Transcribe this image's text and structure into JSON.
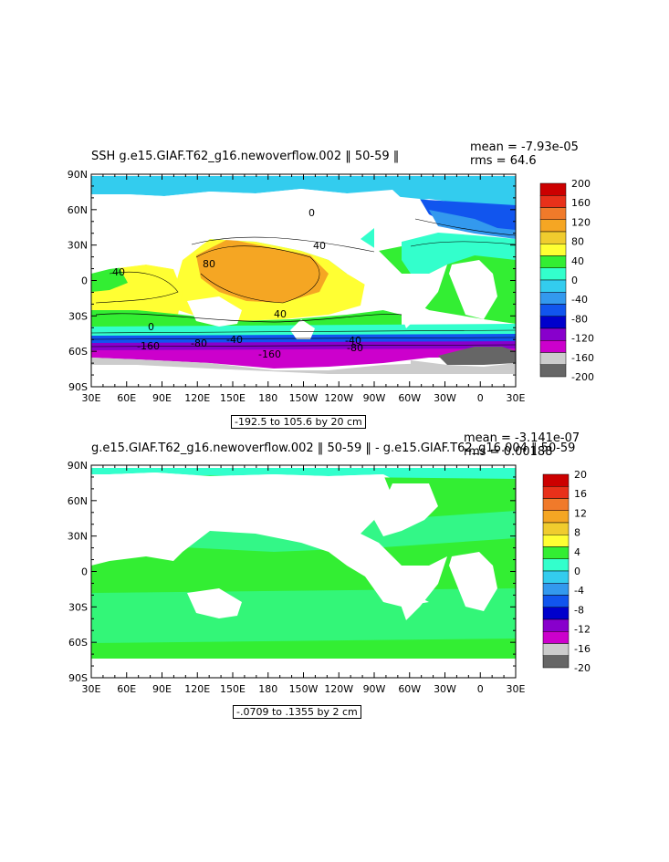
{
  "panels": [
    {
      "title": "SSH g.e15.GIAF.T62_g16.newoverflow.002 ‖ 50-59 ‖",
      "stats": {
        "mean": "mean = -7.93e-05",
        "rms": "rms = 64.6"
      },
      "range_label": "-192.5 to 105.6 by 20 cm",
      "colorbar": {
        "labels": [
          "200",
          "160",
          "120",
          "80",
          "40",
          "0",
          "-40",
          "-80",
          "-120",
          "-160",
          "-200"
        ],
        "colors": [
          "#cc0000",
          "#e8311a",
          "#f07a2a",
          "#f5a623",
          "#f0cc2e",
          "#ffff33",
          "#33ee33",
          "#33ffcc",
          "#33ccee",
          "#3399ee",
          "#1155ee",
          "#0000cc",
          "#8800cc",
          "#cc00cc",
          "#cccccc",
          "#666666"
        ]
      },
      "contour_labels": [
        "40",
        "80",
        "40",
        "0",
        "40",
        "0",
        "-40",
        "-80",
        "-40",
        "-80",
        "-160",
        "-160"
      ]
    },
    {
      "title": "g.e15.GIAF.T62_g16.newoverflow.002 ‖ 50-59 ‖ - g.e15.GIAF.T62_g16.004 ‖ 50-59",
      "stats": {
        "mean": "mean = -3.141e-07",
        "rms": "rms = 0.00188"
      },
      "range_label": "-.0709 to .1355 by 2 cm",
      "colorbar": {
        "labels": [
          "20",
          "16",
          "12",
          "8",
          "4",
          "0",
          "-4",
          "-8",
          "-12",
          "-16",
          "-20"
        ],
        "colors": [
          "#cc0000",
          "#e8311a",
          "#f07a2a",
          "#f5a623",
          "#f0cc2e",
          "#ffff33",
          "#33ee33",
          "#33ffcc",
          "#33ccee",
          "#3399ee",
          "#1155ee",
          "#0000cc",
          "#8800cc",
          "#cc00cc",
          "#cccccc",
          "#666666"
        ]
      }
    }
  ],
  "axes": {
    "lat_labels": [
      "90N",
      "60N",
      "30N",
      "0",
      "30S",
      "60S",
      "90S"
    ],
    "lon_labels": [
      "30E",
      "60E",
      "90E",
      "120E",
      "150E",
      "180",
      "150W",
      "120W",
      "90W",
      "60W",
      "30W",
      "0",
      "30E"
    ]
  },
  "map_colors": {
    "ocean_green": "#33ee33",
    "ocean_cyan": "#33ffcc",
    "ocean_light_blue": "#33ccee",
    "yellow": "#ffff33",
    "orange": "#f5a623",
    "blue": "#1155ee",
    "purple": "#cc00cc",
    "grey": "#cccccc",
    "dark_grey": "#666666"
  }
}
